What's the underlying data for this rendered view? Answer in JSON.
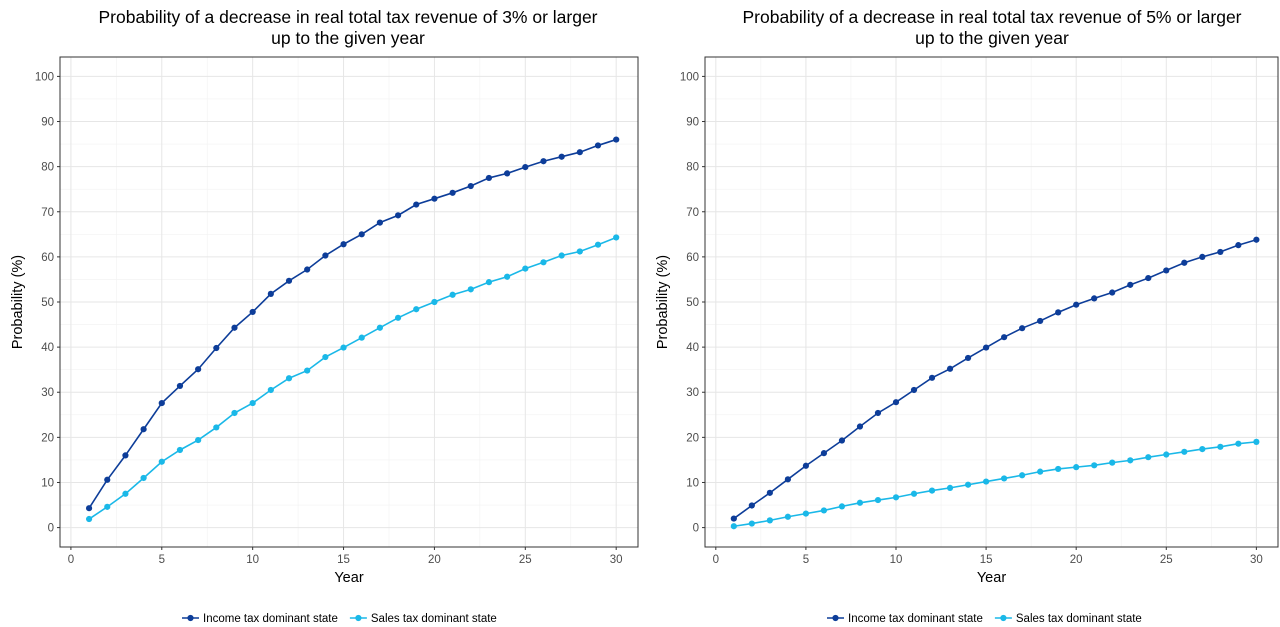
{
  "chart_data": [
    {
      "type": "line",
      "title": "Probability of a decrease in real total tax revenue of 3% or larger",
      "title_line2": "up to the given year",
      "xlabel": "Year",
      "ylabel": "Probability (%)",
      "xlim": [
        0,
        30
      ],
      "ylim": [
        0,
        100
      ],
      "xticks": [
        "0",
        "5",
        "10",
        "15",
        "20",
        "25",
        "30"
      ],
      "yticks": [
        "0",
        "10",
        "20",
        "30",
        "40",
        "50",
        "60",
        "70",
        "80",
        "90",
        "100"
      ],
      "grid": true,
      "legend_position": "bottom",
      "x": [
        1,
        2,
        3,
        4,
        5,
        6,
        7,
        8,
        9,
        10,
        11,
        12,
        13,
        14,
        15,
        16,
        17,
        18,
        19,
        20,
        21,
        22,
        23,
        24,
        25,
        26,
        27,
        28,
        29,
        30
      ],
      "series": [
        {
          "name": "Income tax dominant state",
          "color": "#0d3d99",
          "values": [
            4.3,
            10.6,
            16.0,
            21.8,
            27.6,
            31.4,
            35.1,
            39.8,
            44.3,
            47.8,
            51.8,
            54.7,
            57.2,
            60.3,
            62.8,
            65.0,
            67.6,
            69.2,
            71.6,
            72.9,
            74.2,
            75.7,
            77.5,
            78.5,
            79.9,
            81.2,
            82.2,
            83.2,
            84.7,
            86.0
          ]
        },
        {
          "name": "Sales tax dominant state",
          "color": "#1ab8e8",
          "values": [
            1.9,
            4.6,
            7.5,
            11.0,
            14.6,
            17.2,
            19.4,
            22.2,
            25.4,
            27.6,
            30.5,
            33.1,
            34.8,
            37.8,
            39.9,
            42.1,
            44.3,
            46.5,
            48.4,
            50.0,
            51.6,
            52.8,
            54.4,
            55.6,
            57.4,
            58.8,
            60.3,
            61.2,
            62.7,
            64.3
          ]
        }
      ]
    },
    {
      "type": "line",
      "title": "Probability of a decrease in real total tax revenue of 5% or larger",
      "title_line2": "up to the given year",
      "xlabel": "Year",
      "ylabel": "Probability (%)",
      "xlim": [
        0,
        30
      ],
      "ylim": [
        0,
        100
      ],
      "xticks": [
        "0",
        "5",
        "10",
        "15",
        "20",
        "25",
        "30"
      ],
      "yticks": [
        "0",
        "10",
        "20",
        "30",
        "40",
        "50",
        "60",
        "70",
        "80",
        "90",
        "100"
      ],
      "grid": true,
      "legend_position": "bottom",
      "x": [
        1,
        2,
        3,
        4,
        5,
        6,
        7,
        8,
        9,
        10,
        11,
        12,
        13,
        14,
        15,
        16,
        17,
        18,
        19,
        20,
        21,
        22,
        23,
        24,
        25,
        26,
        27,
        28,
        29,
        30
      ],
      "series": [
        {
          "name": "Income tax dominant state",
          "color": "#0d3d99",
          "values": [
            2.0,
            4.9,
            7.7,
            10.7,
            13.7,
            16.5,
            19.3,
            22.4,
            25.4,
            27.8,
            30.5,
            33.2,
            35.2,
            37.6,
            39.9,
            42.2,
            44.2,
            45.8,
            47.7,
            49.4,
            50.8,
            52.1,
            53.8,
            55.3,
            57.0,
            58.7,
            60.0,
            61.1,
            62.6,
            63.8
          ]
        },
        {
          "name": "Sales tax dominant state",
          "color": "#1ab8e8",
          "values": [
            0.3,
            0.9,
            1.6,
            2.4,
            3.1,
            3.8,
            4.7,
            5.5,
            6.1,
            6.7,
            7.5,
            8.2,
            8.8,
            9.5,
            10.2,
            10.9,
            11.6,
            12.4,
            13.0,
            13.4,
            13.8,
            14.4,
            14.9,
            15.6,
            16.2,
            16.8,
            17.4,
            17.9,
            18.6,
            19.0
          ]
        }
      ]
    }
  ]
}
